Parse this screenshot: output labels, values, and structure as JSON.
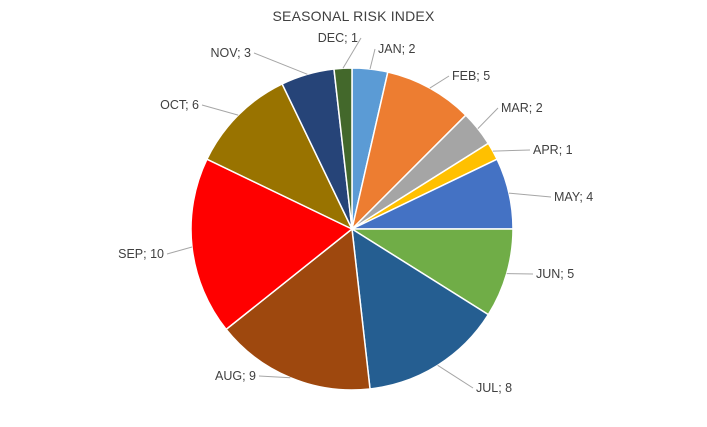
{
  "chart_data": {
    "type": "pie",
    "title": "SEASONAL RISK INDEX",
    "label_separator": "; ",
    "slices": [
      {
        "label": "JAN",
        "value": 2,
        "color": "#5B9BD5"
      },
      {
        "label": "FEB",
        "value": 5,
        "color": "#ED7D31"
      },
      {
        "label": "MAR",
        "value": 2,
        "color": "#A5A5A5"
      },
      {
        "label": "APR",
        "value": 1,
        "color": "#FFC000"
      },
      {
        "label": "MAY",
        "value": 4,
        "color": "#4472C4"
      },
      {
        "label": "JUN",
        "value": 5,
        "color": "#70AD47"
      },
      {
        "label": "JUL",
        "value": 8,
        "color": "#255E91"
      },
      {
        "label": "AUG",
        "value": 9,
        "color": "#9E480E"
      },
      {
        "label": "SEP",
        "value": 10,
        "color": "#FF0000"
      },
      {
        "label": "OCT",
        "value": 6,
        "color": "#997300"
      },
      {
        "label": "NOV",
        "value": 3,
        "color": "#264478"
      },
      {
        "label": "DEC",
        "value": 1,
        "color": "#43682B"
      }
    ],
    "legend": "none"
  }
}
